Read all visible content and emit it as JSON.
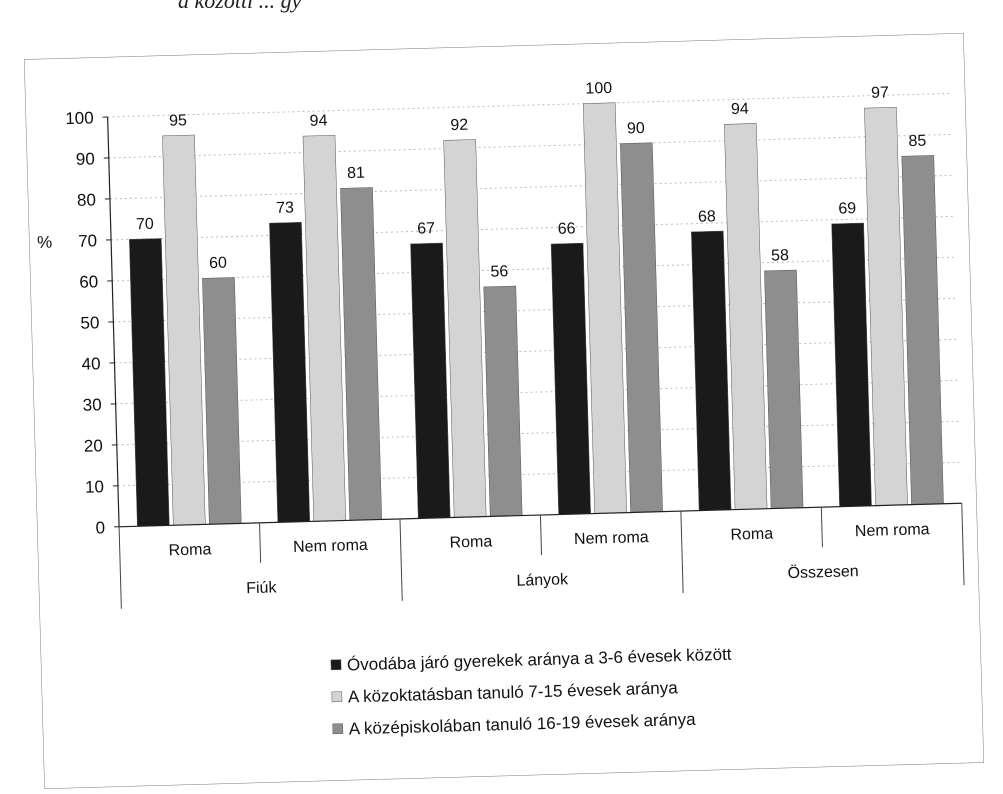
{
  "header_fragment": "a közötti ... gy",
  "chart_data": {
    "type": "bar",
    "ylabel": "%",
    "ylim": [
      0,
      100
    ],
    "yticks": [
      0,
      10,
      20,
      30,
      40,
      50,
      60,
      70,
      80,
      90,
      100
    ],
    "grid": true,
    "legend_position": "bottom",
    "categories": [
      "Roma",
      "Nem roma",
      "Roma",
      "Nem roma",
      "Roma",
      "Nem roma"
    ],
    "groups": [
      {
        "label": "Fiúk",
        "categories": [
          "Roma",
          "Nem roma"
        ]
      },
      {
        "label": "Lányok",
        "categories": [
          "Roma",
          "Nem roma"
        ]
      },
      {
        "label": "Összesen",
        "categories": [
          "Roma",
          "Nem roma"
        ]
      }
    ],
    "series": [
      {
        "name": "Óvodába járó gyerekek aránya a 3-6 évesek között",
        "color": "#1a1a1a",
        "values": [
          70,
          73,
          67,
          66,
          68,
          69
        ]
      },
      {
        "name": "A közoktatásban tanuló 7-15 évesek aránya",
        "color": "#d4d4d4",
        "values": [
          95,
          94,
          92,
          100,
          94,
          97
        ]
      },
      {
        "name": "A középiskolában tanuló 16-19 évesek aránya",
        "color": "#8e8e8e",
        "values": [
          60,
          81,
          56,
          90,
          58,
          85
        ]
      }
    ]
  }
}
